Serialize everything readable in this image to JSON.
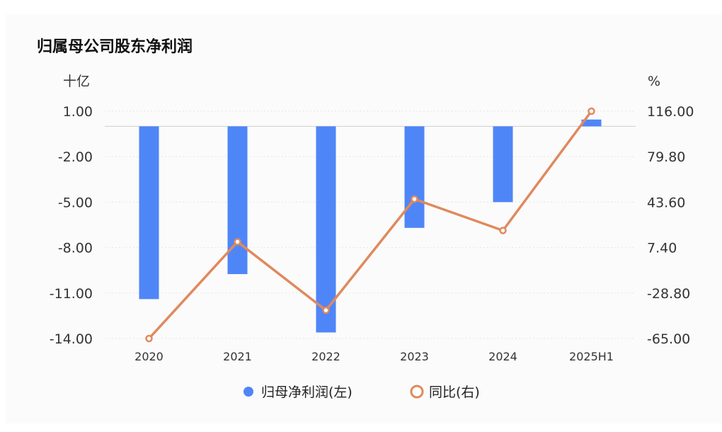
{
  "chart_data": {
    "type": "bar",
    "title": "归属母公司股东净利润",
    "categories": [
      "2020",
      "2021",
      "2022",
      "2023",
      "2024",
      "2025H1"
    ],
    "left_axis": {
      "unit": "十亿",
      "ticks": [
        "1.00",
        "-2.00",
        "-5.00",
        "-8.00",
        "-11.00",
        "-14.00"
      ],
      "range": [
        -14,
        1
      ]
    },
    "right_axis": {
      "unit": "%",
      "ticks": [
        "116.00",
        "79.80",
        "43.60",
        "7.40",
        "-28.80",
        "-65.00"
      ],
      "range": [
        -65,
        116
      ]
    },
    "series": [
      {
        "name": "归母净利润(左)",
        "type": "bar",
        "axis": "left",
        "color": "#4f86f7",
        "values": [
          -11.4,
          -9.75,
          -13.6,
          -6.7,
          -5.0,
          0.45
        ]
      },
      {
        "name": "同比(右)",
        "type": "line",
        "axis": "right",
        "color": "#e0895e",
        "values": [
          -65.0,
          12.0,
          -42.5,
          46.0,
          21.0,
          116.0
        ]
      }
    ],
    "grid": true,
    "legend": "bottom"
  }
}
